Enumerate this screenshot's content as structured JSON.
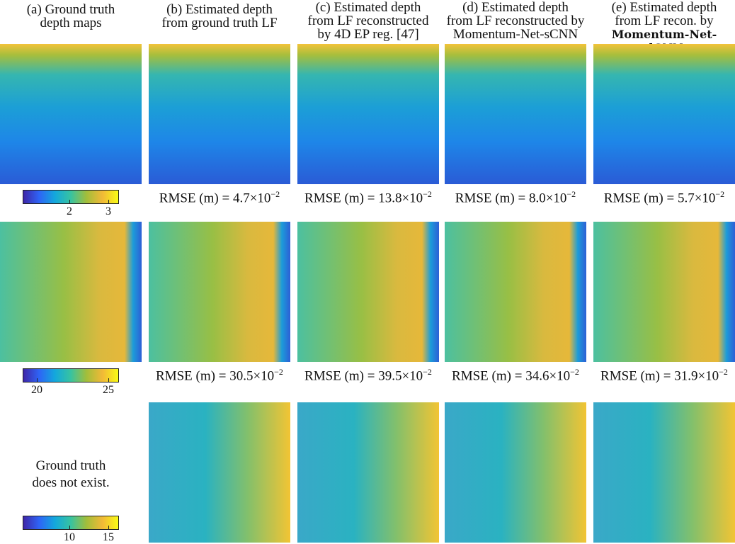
{
  "columns": [
    {
      "header": [
        "(a) Ground truth",
        "depth maps"
      ]
    },
    {
      "header": [
        "(b) Estimated depth",
        "from ground truth LF"
      ]
    },
    {
      "header": [
        "(c) Estimated depth",
        "from LF reconstructed",
        "by 4D EP reg. [47]"
      ]
    },
    {
      "header": [
        "(d) Estimated depth",
        "from LF reconstructed by",
        "Momentum-Net-sCNN"
      ]
    },
    {
      "header": [
        "(e) Estimated depth",
        "from LF recon. by",
        "Momentum-Net-dCNN"
      ]
    }
  ],
  "rmse_prefix": "RMSE (m) =",
  "rmse_times": "×10",
  "rmse_exponent": "−2",
  "rows": [
    {
      "colorbar_ticks": [
        "2",
        "3"
      ],
      "rmse": [
        "4.7",
        "13.8",
        "8.0",
        "5.7"
      ]
    },
    {
      "colorbar_ticks": [
        "20",
        "25"
      ],
      "rmse": [
        "30.5",
        "39.5",
        "34.6",
        "31.9"
      ]
    },
    {
      "colorbar_ticks": [
        "10",
        "15"
      ],
      "note": [
        "Ground truth",
        "does not exist."
      ]
    }
  ]
}
